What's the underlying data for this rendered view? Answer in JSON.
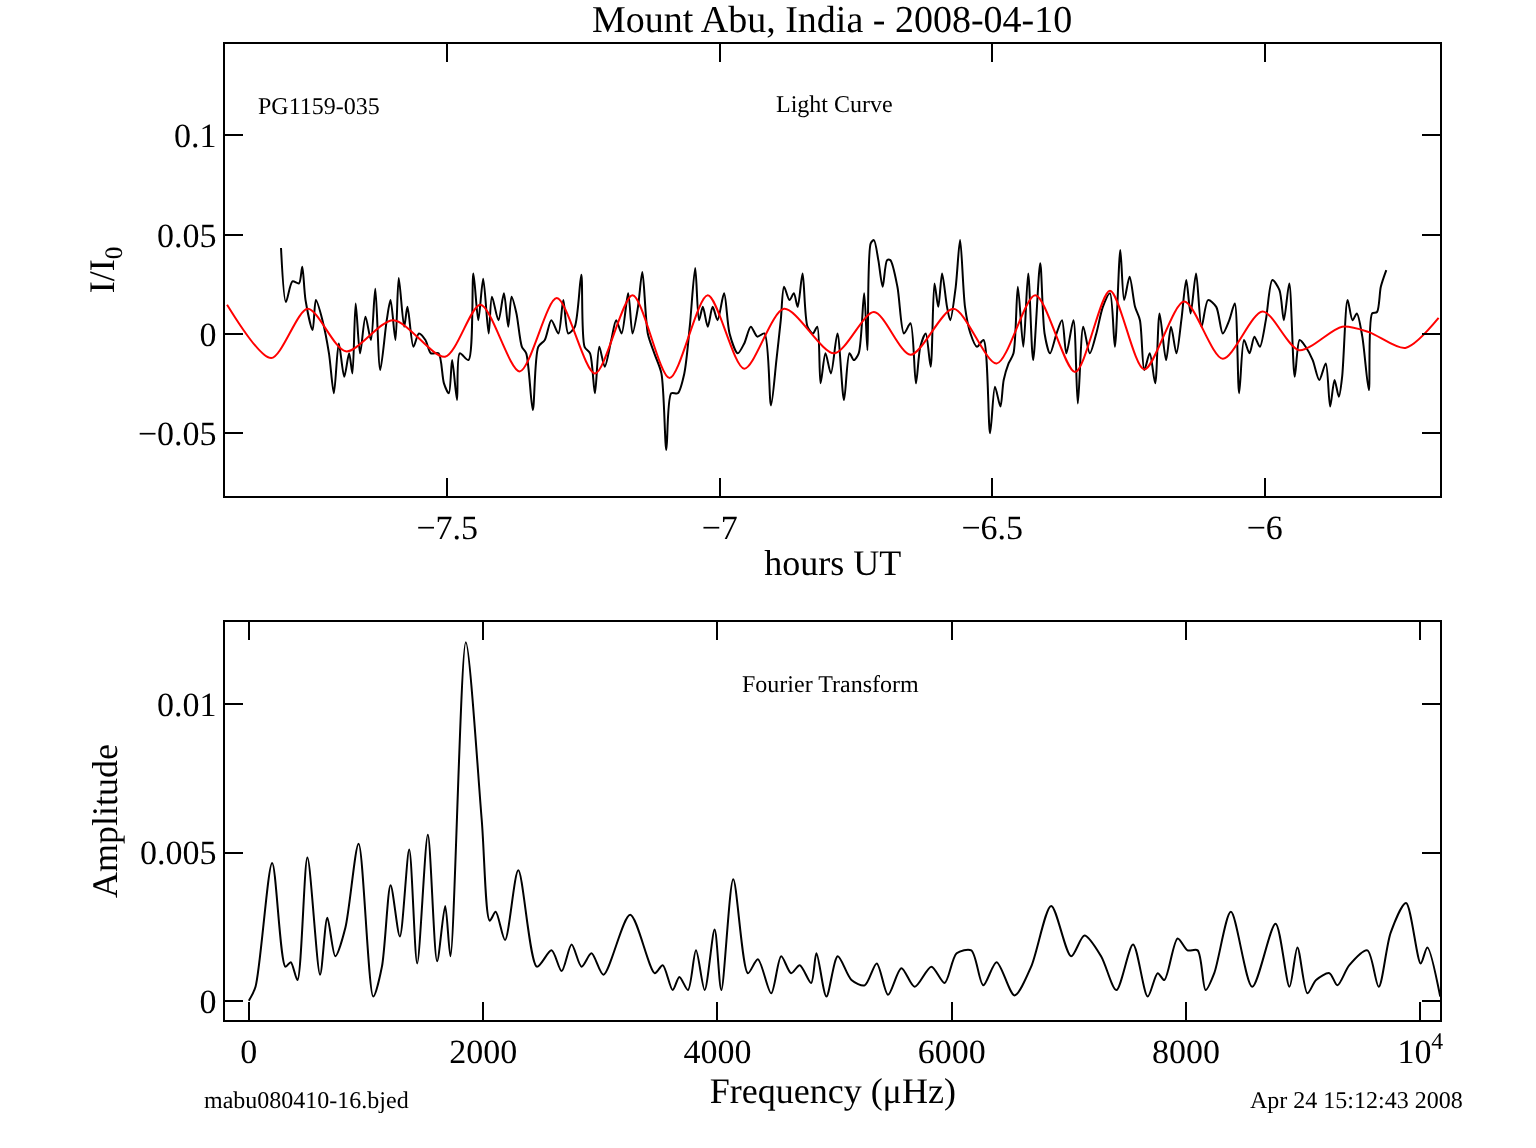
{
  "chart_data": [
    {
      "type": "line",
      "title": "Mount Abu, India - 2008-04-10",
      "xlabel": "hours UT",
      "ylabel": "I/I$_{0}$",
      "annotations": [
        "PG1159-035",
        "Light Curve"
      ],
      "xlim": [
        -7.907,
        -5.678
      ],
      "xticks": [
        -7.5,
        -7,
        -6.5,
        -6
      ],
      "ylim": [
        -0.0815,
        0.146
      ],
      "yticks": [
        -0.05,
        0,
        0.05,
        0.1
      ],
      "series": [
        {
          "color": "#000000",
          "x": [
            -7.805,
            -7.796,
            -7.784,
            -7.772,
            -7.766,
            -7.76,
            -7.747,
            -7.741,
            -7.729,
            -7.717,
            -7.708,
            -7.699,
            -7.689,
            -7.68,
            -7.674,
            -7.668,
            -7.66,
            -7.65,
            -7.64,
            -7.632,
            -7.623,
            -7.611,
            -7.604,
            -7.595,
            -7.589,
            -7.579,
            -7.573,
            -7.562,
            -7.552,
            -7.54,
            -7.53,
            -7.516,
            -7.506,
            -7.497,
            -7.491,
            -7.482,
            -7.477,
            -7.461,
            -7.452,
            -7.443,
            -7.434,
            -7.424,
            -7.418,
            -7.406,
            -7.396,
            -7.388,
            -7.382,
            -7.373,
            -7.363,
            -7.355,
            -7.343,
            -7.333,
            -7.321,
            -7.309,
            -7.296,
            -7.287,
            -7.278,
            -7.266,
            -7.254,
            -7.248,
            -7.238,
            -7.229,
            -7.221,
            -7.211,
            -7.199,
            -7.19,
            -7.18,
            -7.168,
            -7.16,
            -7.15,
            -7.142,
            -7.132,
            -7.12,
            -7.107,
            -7.098,
            -7.089,
            -7.077,
            -7.065,
            -7.055,
            -7.045,
            -7.038,
            -7.031,
            -7.022,
            -7.013,
            -7.004,
            -6.992,
            -6.982,
            -6.967,
            -6.955,
            -6.943,
            -6.931,
            -6.918,
            -6.906,
            -6.896,
            -6.888,
            -6.882,
            -6.872,
            -6.864,
            -6.857,
            -6.848,
            -6.839,
            -6.829,
            -6.821,
            -6.815,
            -6.806,
            -6.796,
            -6.784,
            -6.772,
            -6.762,
            -6.754,
            -6.745,
            -6.735,
            -6.729,
            -6.723,
            -6.717,
            -6.709,
            -6.701,
            -6.693,
            -6.687,
            -6.674,
            -6.662,
            -6.65,
            -6.64,
            -6.632,
            -6.622,
            -6.613,
            -6.606,
            -6.599,
            -6.592,
            -6.583,
            -6.577,
            -6.567,
            -6.559,
            -6.55,
            -6.54,
            -6.528,
            -6.516,
            -6.504,
            -6.495,
            -6.485,
            -6.479,
            -6.47,
            -6.461,
            -6.453,
            -6.443,
            -6.434,
            -6.425,
            -6.412,
            -6.404,
            -6.394,
            -6.382,
            -6.372,
            -6.364,
            -6.351,
            -6.343,
            -6.333,
            -6.321,
            -6.309,
            -6.297,
            -6.284,
            -6.275,
            -6.265,
            -6.258,
            -6.248,
            -6.238,
            -6.229,
            -6.221,
            -6.211,
            -6.201,
            -6.193,
            -6.181,
            -6.172,
            -6.162,
            -6.153,
            -6.144,
            -6.136,
            -6.126,
            -6.116,
            -6.104,
            -6.089,
            -6.077,
            -6.065,
            -6.055,
            -6.047,
            -6.038,
            -6.028,
            -6.019,
            -6.009,
            -5.998,
            -5.986,
            -5.973,
            -5.965,
            -5.955,
            -5.945,
            -5.936,
            -5.925,
            -5.912,
            -5.9,
            -5.888,
            -5.88,
            -5.872,
            -5.864,
            -5.858,
            -5.848,
            -5.839,
            -5.831,
            -5.821,
            -5.809,
            -5.803,
            -5.794,
            -5.787,
            -5.777
          ],
          "values": [
            0.0433,
            0.0161,
            0.0265,
            0.0255,
            0.0339,
            0.0171,
            0.002,
            0.0171,
            0.007,
            -0.0097,
            -0.0298,
            -0.0047,
            -0.0215,
            -0.0097,
            -0.0198,
            0.0154,
            -0.0097,
            0.0087,
            -0.003,
            0.0228,
            -0.0181,
            0.007,
            0.0171,
            -0.003,
            0.0282,
            0.0037,
            0.0137,
            -0.0064,
            0.0003,
            -0.003,
            -0.0097,
            -0.0097,
            -0.0248,
            -0.0298,
            -0.0131,
            -0.0332,
            -0.0097,
            -0.0131,
            0.0305,
            0.007,
            0.0278,
            0.0003,
            0.0188,
            0.007,
            0.0205,
            0.0037,
            0.0188,
            0.0104,
            -0.0064,
            -0.0097,
            -0.0382,
            -0.0064,
            -0.003,
            0.007,
            0.0003,
            0.0171,
            0.0003,
            0.0037,
            0.0298,
            -0.0064,
            -0.0097,
            -0.0298,
            -0.0064,
            -0.0164,
            -0.003,
            0.007,
            0.0003,
            0.0205,
            0.0003,
            0.0137,
            0.0312,
            0.0003,
            -0.0097,
            -0.0198,
            -0.0583,
            -0.0298,
            -0.0298,
            -0.0198,
            0.0037,
            0.0332,
            0.007,
            0.0137,
            0.0037,
            0.0137,
            0.007,
            0.0205,
            0.0003,
            -0.0097,
            -0.0047,
            0.0037,
            -0.0013,
            0.0003,
            -0.0359,
            -0.0131,
            0.007,
            0.0238,
            0.0171,
            0.0205,
            0.0137,
            0.0305,
            0.0037,
            0.0003,
            0.0037,
            -0.0248,
            -0.0097,
            -0.0198,
            0.0003,
            -0.0332,
            -0.0097,
            -0.0131,
            -0.0097,
            0.0205,
            -0.0081,
            0.0456,
            0.0473,
            0.0372,
            0.0238,
            0.0372,
            0.0372,
            0.0238,
            0.0003,
            0.0054,
            -0.0248,
            -0.0064,
            0.0003,
            -0.0164,
            0.0255,
            0.0137,
            0.0305,
            0.0137,
            0.007,
            0.0238,
            0.0473,
            0.0137,
            0.0003,
            -0.0064,
            -0.003,
            -0.0499,
            -0.0265,
            -0.0365,
            -0.0231,
            -0.0148,
            -0.0097,
            0.0238,
            -0.0064,
            0.0305,
            -0.0131,
            0.0356,
            0.0003,
            -0.0097,
            0.0003,
            0.007,
            -0.0097,
            0.007,
            -0.0349,
            0.0037,
            -0.0097,
            0.0003,
            0.0137,
            0.0205,
            -0.0064,
            0.0423,
            0.0171,
            0.0288,
            0.0137,
            0.007,
            -0.0181,
            -0.0097,
            -0.0248,
            0.0104,
            -0.0131,
            0.0037,
            -0.0097,
            0.007,
            0.0272,
            0.0104,
            0.0305,
            0.0037,
            0.0171,
            0.0137,
            0.0003,
            0.007,
            0.0154,
            -0.0298,
            -0.003,
            -0.0097,
            -0.0013,
            -0.0064,
            0.007,
            0.0272,
            0.0221,
            0.007,
            0.0255,
            -0.0215,
            -0.003,
            -0.0064,
            -0.0131,
            -0.0231,
            -0.0148,
            -0.0365,
            -0.0231,
            -0.0315,
            -0.0215,
            0.0171,
            0.007,
            0.0104,
            -0.0013,
            -0.0282,
            0.0104,
            0.0111,
            0.0238,
            0.0322
          ]
        },
        {
          "color": "#ff0000",
          "x": [
            -7.904,
            -7.823,
            -7.756,
            -7.686,
            -7.599,
            -7.504,
            -7.439,
            -7.367,
            -7.299,
            -7.229,
            -7.16,
            -7.092,
            -7.022,
            -6.955,
            -6.882,
            -6.79,
            -6.717,
            -6.65,
            -6.571,
            -6.492,
            -6.421,
            -6.348,
            -6.284,
            -6.221,
            -6.148,
            -6.077,
            -6.004,
            -5.937,
            -5.858,
            -5.809,
            -5.742,
            -5.681
          ],
          "values": [
            0.0148,
            -0.0121,
            0.0127,
            -0.0087,
            0.007,
            -0.0114,
            0.0148,
            -0.0188,
            0.0181,
            -0.0198,
            0.0195,
            -0.0221,
            0.0195,
            -0.0174,
            0.0127,
            -0.0097,
            0.0111,
            -0.0104,
            0.0127,
            -0.0148,
            0.0195,
            -0.0191,
            0.0218,
            -0.0178,
            0.0164,
            -0.0124,
            0.0114,
            -0.0081,
            0.0037,
            0.001,
            -0.007,
            0.0081
          ]
        }
      ]
    },
    {
      "type": "line",
      "xlabel": "Frequency (μHz)",
      "ylabel": "Amplitude",
      "annotations": [
        "Fourier Transform",
        "mabu080410-16.bjed",
        "Apr 24 15:12:43 2008"
      ],
      "xlim": [
        -200,
        10170
      ],
      "xticks": [
        0,
        2000,
        4000,
        6000,
        8000,
        {
          "value": 10000,
          "label": "10$^{4}$"
        }
      ],
      "ylim": [
        -0.00065,
        0.01278
      ],
      "yticks": [
        0,
        0.005,
        0.01
      ],
      "series": [
        {
          "color": "#000000",
          "x": [
            0,
            57,
            199,
            312,
            358,
            415,
            500,
            608,
            670,
            738,
            824,
            937,
            1062,
            1136,
            1210,
            1289,
            1369,
            1437,
            1528,
            1607,
            1676,
            1721,
            1852,
            1988,
            2056,
            2107,
            2187,
            2300,
            2459,
            2584,
            2670,
            2755,
            2840,
            2925,
            3027,
            3255,
            3465,
            3533,
            3618,
            3675,
            3749,
            3817,
            3891,
            3976,
            4033,
            4135,
            4260,
            4345,
            4459,
            4544,
            4629,
            4703,
            4800,
            4845,
            4930,
            5027,
            5144,
            5257,
            5360,
            5456,
            5570,
            5684,
            5826,
            5939,
            6042,
            6167,
            6269,
            6383,
            6536,
            6678,
            6849,
            7019,
            7133,
            7275,
            7405,
            7548,
            7673,
            7758,
            7815,
            7928,
            8013,
            8099,
            8167,
            8241,
            8383,
            8565,
            8764,
            8883,
            8951,
            9036,
            9110,
            9224,
            9292,
            9394,
            9548,
            9645,
            9747,
            9878,
            10003,
            10060,
            10170
          ],
          "values": [
            0,
            0.00047,
            0.00465,
            0.00115,
            0.0013,
            0.0007,
            0.00483,
            0.00088,
            0.0028,
            0.0015,
            0.00246,
            0.0053,
            0.00014,
            0.00115,
            0.0039,
            0.00217,
            0.0051,
            0.00126,
            0.0056,
            0.00133,
            0.0032,
            0.0015,
            0.0121,
            0.0061,
            0.0027,
            0.003,
            0.00205,
            0.0044,
            0.00115,
            0.0017,
            0.001,
            0.0019,
            0.00115,
            0.0016,
            0.00088,
            0.0029,
            0.00093,
            0.0012,
            0.00036,
            0.0008,
            0.00036,
            0.0017,
            0.00036,
            0.0024,
            0.00036,
            0.0041,
            0.00093,
            0.0014,
            0.00025,
            0.0015,
            0.00093,
            0.0012,
            0.0006,
            0.0016,
            0.00014,
            0.0015,
            0.0007,
            0.00052,
            0.00126,
            0.0002,
            0.0011,
            0.00047,
            0.00115,
            0.0006,
            0.0016,
            0.0017,
            0.00052,
            0.0013,
            0.00018,
            0.00115,
            0.0032,
            0.0015,
            0.0022,
            0.0015,
            0.00036,
            0.0019,
            0.00014,
            0.00093,
            0.0007,
            0.0021,
            0.0017,
            0.0017,
            0.00036,
            0.00093,
            0.003,
            0.00047,
            0.0026,
            0.00047,
            0.0018,
            0.00025,
            0.0007,
            0.00093,
            0.00052,
            0.0012,
            0.0017,
            0.00047,
            0.0023,
            0.0033,
            0.00126,
            0.0018,
            0.00014
          ]
        }
      ]
    }
  ]
}
